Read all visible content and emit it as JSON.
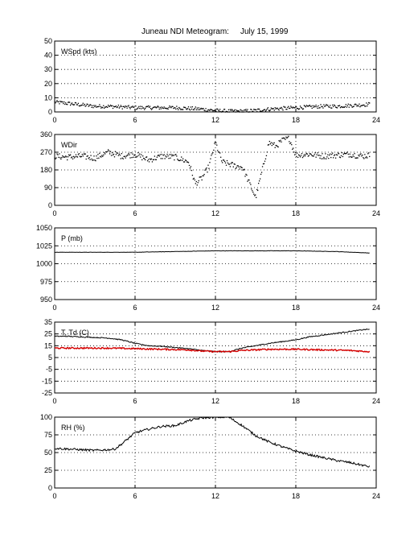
{
  "title": {
    "station": "Juneau NDI Meteogram:",
    "date": "July 15, 1999"
  },
  "colors": {
    "primary": "#000000",
    "dewpoint": "#d40000",
    "grid": "#000000"
  },
  "chart_data": [
    {
      "type": "scatter",
      "label": "WSpd (kts)",
      "xlim": [
        0,
        24
      ],
      "ylim": [
        0,
        50
      ],
      "xticks": [
        0,
        6,
        12,
        18,
        24
      ],
      "yticks": [
        0,
        10,
        20,
        30,
        40,
        50
      ],
      "grid": true,
      "series": [
        {
          "x": [
            0,
            1,
            2,
            3,
            4,
            5,
            6,
            7,
            8,
            9,
            10,
            11,
            12,
            13,
            14,
            15,
            16,
            17,
            18,
            19,
            20,
            21,
            22,
            23,
            23.5
          ],
          "y": [
            7,
            6,
            5,
            4,
            4,
            3.5,
            3,
            3,
            3,
            3,
            2.5,
            2,
            1,
            0.5,
            0.5,
            1,
            2,
            2.5,
            3,
            3.5,
            4,
            4,
            4.5,
            5,
            5.5
          ],
          "noise": 1.3
        }
      ]
    },
    {
      "type": "scatter",
      "label": "WDir",
      "xlim": [
        0,
        24
      ],
      "ylim": [
        0,
        360
      ],
      "xticks": [
        0,
        6,
        12,
        18,
        24
      ],
      "yticks": [
        0,
        90,
        180,
        270,
        360
      ],
      "grid": true,
      "series": [
        {
          "x": [
            0,
            1,
            2,
            3,
            4,
            5,
            6,
            7,
            8,
            9,
            10,
            10.5,
            11,
            11.5,
            12,
            12.5,
            13,
            13.5,
            14,
            15,
            16,
            16.5,
            17,
            17.5,
            18,
            19,
            20,
            21,
            22,
            23,
            23.5
          ],
          "y": [
            250,
            245,
            250,
            240,
            270,
            250,
            260,
            230,
            250,
            245,
            220,
            110,
            140,
            195,
            320,
            220,
            210,
            200,
            195,
            40,
            320,
            300,
            330,
            340,
            255,
            260,
            250,
            255,
            260,
            250,
            255
          ],
          "noise": 15
        }
      ]
    },
    {
      "type": "line",
      "label": "P (mb)",
      "xlim": [
        0,
        24
      ],
      "ylim": [
        950,
        1050
      ],
      "xticks": [
        0,
        6,
        12,
        18,
        24
      ],
      "yticks": [
        950,
        975,
        1000,
        1025,
        1050
      ],
      "grid": true,
      "series": [
        {
          "x": [
            0,
            3,
            6,
            9,
            12,
            15,
            18,
            21,
            23.5
          ],
          "y": [
            1016,
            1016,
            1016,
            1017,
            1018,
            1018,
            1018,
            1017,
            1015
          ],
          "noise": 0.2
        }
      ]
    },
    {
      "type": "line",
      "label": "T, Td (C)",
      "xlim": [
        0,
        24
      ],
      "ylim": [
        -25,
        35
      ],
      "xticks": [
        0,
        6,
        12,
        18,
        24
      ],
      "yticks": [
        -25,
        -15,
        -5,
        5,
        15,
        25,
        35
      ],
      "grid": true,
      "series": [
        {
          "name": "T",
          "color": "#000000",
          "x": [
            0,
            1,
            2,
            3,
            4,
            5,
            6,
            7,
            8,
            9,
            10,
            11,
            12,
            13,
            14,
            15,
            16,
            17,
            18,
            19,
            20,
            21,
            22,
            23,
            23.5
          ],
          "y": [
            23,
            23,
            22.5,
            22,
            21.5,
            20,
            17,
            15,
            14.5,
            13.5,
            12.5,
            11,
            10,
            10,
            13,
            15,
            17,
            18.5,
            20,
            22.5,
            24,
            25.5,
            27,
            28.5,
            29
          ],
          "noise": 0.4
        },
        {
          "name": "Td",
          "color": "#d40000",
          "x": [
            0,
            2,
            4,
            6,
            8,
            10,
            11,
            12,
            13,
            14,
            16,
            18,
            20,
            22,
            23.5
          ],
          "y": [
            13,
            13,
            13,
            12.5,
            12,
            11.5,
            10.5,
            10,
            10,
            11,
            12,
            12,
            11.5,
            11,
            10
          ],
          "noise": 0.6
        }
      ]
    },
    {
      "type": "line",
      "label": "RH (%)",
      "xlim": [
        0,
        24
      ],
      "ylim": [
        0,
        100
      ],
      "xticks": [
        0,
        6,
        12,
        18,
        24
      ],
      "yticks": [
        0,
        25,
        50,
        75,
        100
      ],
      "grid": true,
      "series": [
        {
          "x": [
            0,
            1,
            2,
            3,
            4,
            4.5,
            5,
            5.5,
            6,
            7,
            8,
            9,
            10,
            11,
            12,
            13,
            14,
            15,
            16,
            17,
            18,
            19,
            20,
            21,
            22,
            23,
            23.5
          ],
          "y": [
            56,
            55,
            54,
            53,
            54,
            55,
            62,
            70,
            78,
            83,
            87,
            88,
            95,
            99,
            100,
            100,
            88,
            74,
            65,
            58,
            52,
            47,
            43,
            39,
            36,
            32,
            30
          ],
          "noise": 1.5
        }
      ]
    }
  ]
}
